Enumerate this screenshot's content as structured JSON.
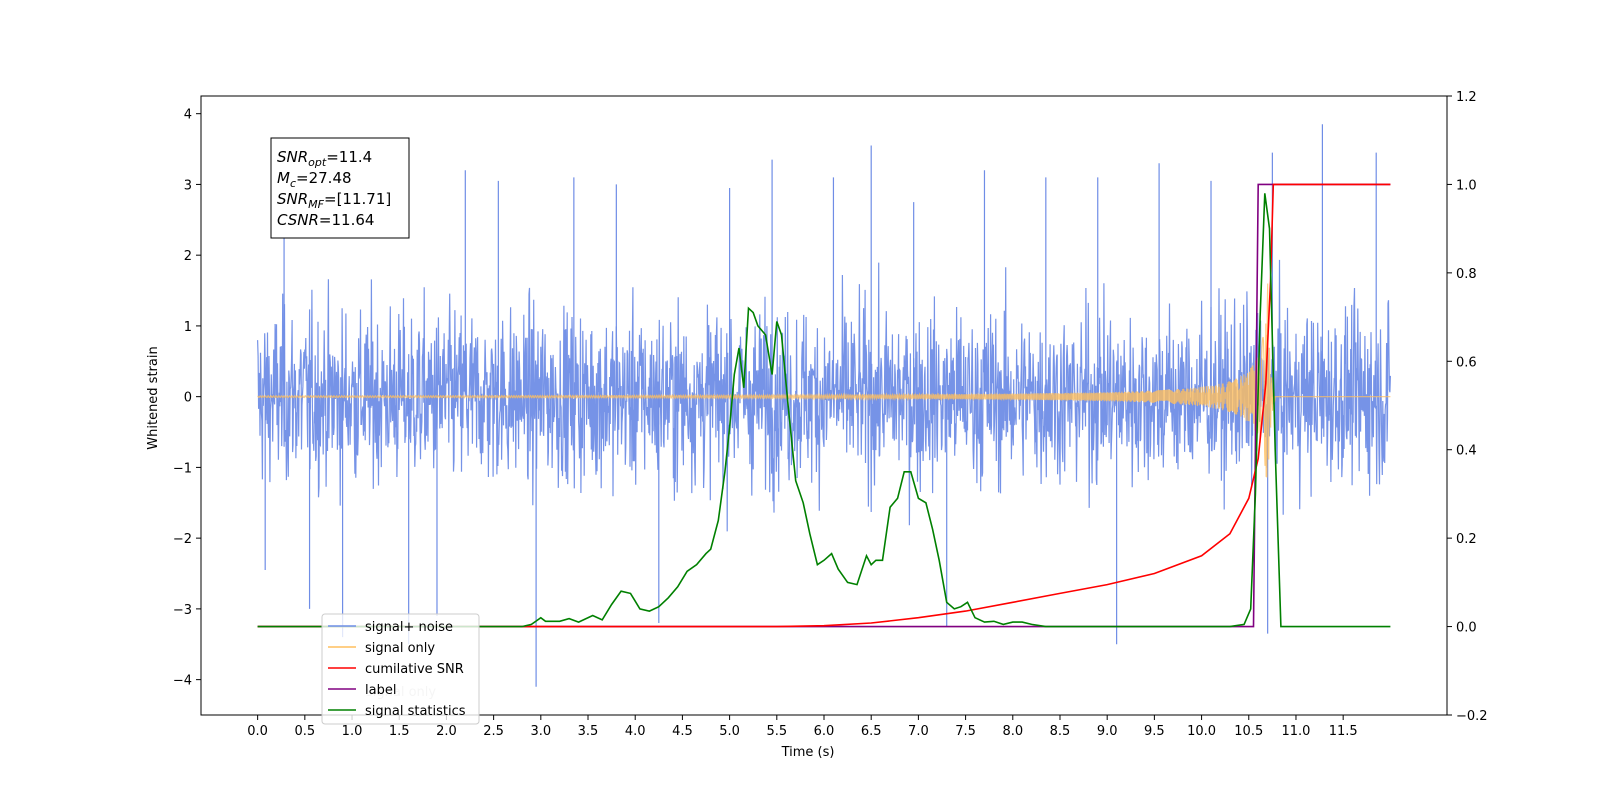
{
  "chart_data": {
    "type": "line",
    "xlabel": "Time (s)",
    "ylabel": "Whitened strain",
    "xlim": [
      -0.6,
      12.6
    ],
    "ylim": [
      -4.5,
      4.25
    ],
    "y2lim": [
      -0.2,
      1.2
    ],
    "x_ticks": [
      "0.0",
      "0.5",
      "1.0",
      "1.5",
      "2.0",
      "2.5",
      "3.0",
      "3.5",
      "4.0",
      "4.5",
      "5.0",
      "5.5",
      "6.0",
      "6.5",
      "7.0",
      "7.5",
      "8.0",
      "8.5",
      "9.0",
      "9.5",
      "10.0",
      "10.5",
      "11.0",
      "11.5"
    ],
    "x_tick_values": [
      0,
      0.5,
      1,
      1.5,
      2,
      2.5,
      3,
      3.5,
      4,
      4.5,
      5,
      5.5,
      6,
      6.5,
      7,
      7.5,
      8,
      8.5,
      9,
      9.5,
      10,
      10.5,
      11,
      11.5
    ],
    "y_ticks": [
      "4",
      "3",
      "2",
      "1",
      "0",
      "−1",
      "−2",
      "−3",
      "−4"
    ],
    "y_tick_values": [
      4,
      3,
      2,
      1,
      0,
      -1,
      -2,
      -3,
      -4
    ],
    "y2_ticks": [
      "1.2",
      "1.0",
      "0.8",
      "0.6",
      "0.4",
      "0.2",
      "0.0",
      "−0.2"
    ],
    "y2_tick_values": [
      1.2,
      1.0,
      0.8,
      0.6,
      0.4,
      0.2,
      0.0,
      -0.2
    ],
    "grid": false,
    "legend_position": "lower-left",
    "legend": [
      {
        "name": "signal+ noise",
        "color": "#6f8de6"
      },
      {
        "name": "signal only",
        "color": "#ffbf5f"
      },
      {
        "name": "cumilative SNR",
        "color": "#ff0000"
      },
      {
        "name": "label",
        "color": "#800080"
      },
      {
        "name": "signal statistics",
        "color": "#008000"
      }
    ],
    "hidden_legend_fragments": [
      "signal only",
      "noise"
    ],
    "annotation": {
      "lines": [
        {
          "base": "SNR",
          "sub": "opt",
          "value": "=11.4"
        },
        {
          "base": "M",
          "sub": "c",
          "value": "=27.48"
        },
        {
          "base": "SNR",
          "sub": "MF",
          "value": "=[11.71]"
        },
        {
          "base": "CSNR",
          "sub": "",
          "value": "=11.64"
        }
      ]
    },
    "series": {
      "signal_noise": {
        "axis": "left",
        "x_range": [
          0,
          12
        ],
        "description_range": [
          -1.8,
          1.5
        ],
        "spikes": [
          {
            "x": 0.08,
            "y": -2.45
          },
          {
            "x": 0.28,
            "y": 2.8
          },
          {
            "x": 0.55,
            "y": -3.0
          },
          {
            "x": 0.9,
            "y": -3.4
          },
          {
            "x": 1.6,
            "y": -3.5
          },
          {
            "x": 1.9,
            "y": -3.1
          },
          {
            "x": 2.2,
            "y": 3.2
          },
          {
            "x": 2.55,
            "y": 3.05
          },
          {
            "x": 2.95,
            "y": -4.1
          },
          {
            "x": 3.35,
            "y": 3.1
          },
          {
            "x": 3.8,
            "y": 3.0
          },
          {
            "x": 4.25,
            "y": -3.2
          },
          {
            "x": 5.0,
            "y": 2.95
          },
          {
            "x": 5.45,
            "y": 3.35
          },
          {
            "x": 6.1,
            "y": 3.1
          },
          {
            "x": 6.5,
            "y": 3.55
          },
          {
            "x": 6.95,
            "y": 2.75
          },
          {
            "x": 7.3,
            "y": -3.25
          },
          {
            "x": 7.7,
            "y": 3.2
          },
          {
            "x": 8.35,
            "y": 3.1
          },
          {
            "x": 8.9,
            "y": 3.1
          },
          {
            "x": 9.1,
            "y": -3.5
          },
          {
            "x": 9.55,
            "y": 3.3
          },
          {
            "x": 10.1,
            "y": 3.05
          },
          {
            "x": 10.7,
            "y": -3.35
          },
          {
            "x": 10.75,
            "y": 3.45
          },
          {
            "x": 11.28,
            "y": 3.85
          },
          {
            "x": 11.85,
            "y": 3.45
          }
        ]
      },
      "signal_only": {
        "axis": "left",
        "x_range": [
          0,
          12
        ],
        "peak_time": 10.7,
        "peak_amplitude": 1.6
      },
      "cumulative_snr": {
        "axis": "right",
        "points": [
          [
            0,
            0
          ],
          [
            5.5,
            0
          ],
          [
            6.0,
            0.002
          ],
          [
            6.5,
            0.008
          ],
          [
            7.0,
            0.02
          ],
          [
            7.5,
            0.035
          ],
          [
            8.0,
            0.055
          ],
          [
            8.5,
            0.075
          ],
          [
            9.0,
            0.095
          ],
          [
            9.5,
            0.12
          ],
          [
            10.0,
            0.16
          ],
          [
            10.3,
            0.21
          ],
          [
            10.5,
            0.29
          ],
          [
            10.6,
            0.38
          ],
          [
            10.68,
            0.55
          ],
          [
            10.73,
            0.78
          ],
          [
            10.76,
            1.0
          ],
          [
            11.0,
            1.0
          ],
          [
            12.0,
            1.0
          ]
        ]
      },
      "label": {
        "axis": "right",
        "points": [
          [
            0,
            0
          ],
          [
            10.55,
            0
          ],
          [
            10.6,
            1.0
          ],
          [
            12.0,
            1.0
          ]
        ]
      },
      "signal_statistics": {
        "axis": "right",
        "points": [
          [
            0,
            0
          ],
          [
            2.8,
            0
          ],
          [
            2.9,
            0.005
          ],
          [
            3.0,
            0.02
          ],
          [
            3.05,
            0.012
          ],
          [
            3.2,
            0.012
          ],
          [
            3.3,
            0.018
          ],
          [
            3.4,
            0.01
          ],
          [
            3.55,
            0.025
          ],
          [
            3.65,
            0.015
          ],
          [
            3.75,
            0.05
          ],
          [
            3.85,
            0.08
          ],
          [
            3.95,
            0.075
          ],
          [
            4.05,
            0.04
          ],
          [
            4.15,
            0.035
          ],
          [
            4.25,
            0.045
          ],
          [
            4.35,
            0.065
          ],
          [
            4.45,
            0.09
          ],
          [
            4.55,
            0.125
          ],
          [
            4.65,
            0.14
          ],
          [
            4.75,
            0.165
          ],
          [
            4.8,
            0.175
          ],
          [
            4.88,
            0.24
          ],
          [
            4.95,
            0.35
          ],
          [
            5.0,
            0.45
          ],
          [
            5.05,
            0.57
          ],
          [
            5.1,
            0.63
          ],
          [
            5.15,
            0.54
          ],
          [
            5.2,
            0.72
          ],
          [
            5.25,
            0.71
          ],
          [
            5.3,
            0.68
          ],
          [
            5.38,
            0.66
          ],
          [
            5.45,
            0.57
          ],
          [
            5.5,
            0.69
          ],
          [
            5.55,
            0.66
          ],
          [
            5.62,
            0.5
          ],
          [
            5.7,
            0.33
          ],
          [
            5.78,
            0.28
          ],
          [
            5.85,
            0.21
          ],
          [
            5.93,
            0.14
          ],
          [
            6.0,
            0.15
          ],
          [
            6.08,
            0.165
          ],
          [
            6.15,
            0.13
          ],
          [
            6.25,
            0.1
          ],
          [
            6.35,
            0.095
          ],
          [
            6.45,
            0.16
          ],
          [
            6.5,
            0.14
          ],
          [
            6.55,
            0.15
          ],
          [
            6.62,
            0.15
          ],
          [
            6.7,
            0.27
          ],
          [
            6.78,
            0.29
          ],
          [
            6.85,
            0.35
          ],
          [
            6.92,
            0.35
          ],
          [
            7.0,
            0.29
          ],
          [
            7.08,
            0.28
          ],
          [
            7.15,
            0.22
          ],
          [
            7.22,
            0.15
          ],
          [
            7.3,
            0.055
          ],
          [
            7.38,
            0.04
          ],
          [
            7.45,
            0.045
          ],
          [
            7.52,
            0.055
          ],
          [
            7.6,
            0.02
          ],
          [
            7.7,
            0.01
          ],
          [
            7.8,
            0.012
          ],
          [
            7.9,
            0.005
          ],
          [
            8.0,
            0.01
          ],
          [
            8.1,
            0.01
          ],
          [
            8.2,
            0.005
          ],
          [
            8.35,
            0
          ],
          [
            10.3,
            0
          ],
          [
            10.45,
            0.005
          ],
          [
            10.52,
            0.04
          ],
          [
            10.57,
            0.3
          ],
          [
            10.62,
            0.7
          ],
          [
            10.67,
            0.98
          ],
          [
            10.72,
            0.9
          ],
          [
            10.78,
            0.4
          ],
          [
            10.84,
            0
          ],
          [
            12.0,
            0
          ]
        ]
      }
    }
  }
}
